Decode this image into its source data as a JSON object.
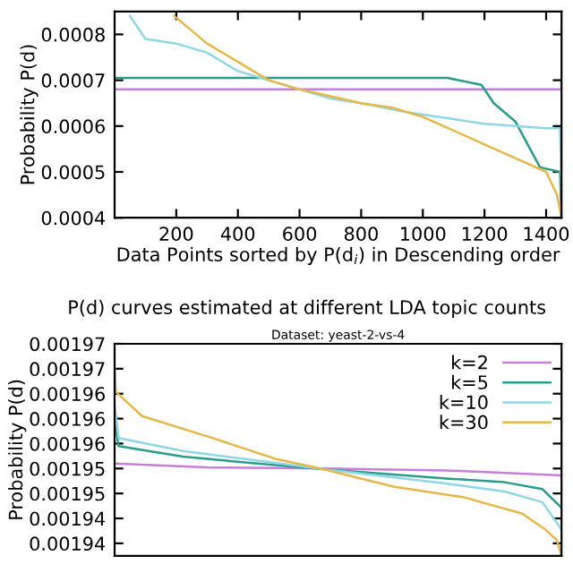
{
  "chart_data": [
    {
      "type": "line",
      "xlabel": "Data Points sorted by P(d$_{i}$) in Descending order",
      "ylabel": "Probability P(d)",
      "xlim": [
        0,
        1450
      ],
      "xticks": [
        200,
        400,
        600,
        800,
        1000,
        1200,
        1400
      ],
      "ylim": [
        0.0004,
        0.00085
      ],
      "yticks": [
        {
          "value": 0.0004,
          "label": "0.0004"
        },
        {
          "value": 0.0005,
          "label": "0.0005"
        },
        {
          "value": 0.0006,
          "label": "0.0006"
        },
        {
          "value": 0.0007,
          "label": "0.0007"
        },
        {
          "value": 0.0008,
          "label": "0.0008"
        }
      ],
      "grid": false,
      "legend": false,
      "series": [
        {
          "color": "#c77fd9",
          "x": [
            0,
            1450
          ],
          "values": [
            0.00068,
            0.00068
          ]
        },
        {
          "color": "#2a9d8a",
          "x": [
            0,
            1080,
            1190,
            1230,
            1300,
            1380,
            1445,
            1450
          ],
          "values": [
            0.000705,
            0.000705,
            0.00069,
            0.00065,
            0.00061,
            0.00051,
            0.0005,
            0.0004
          ]
        },
        {
          "color": "#8fd6e6",
          "x": [
            50,
            100,
            200,
            300,
            400,
            500,
            600,
            700,
            800,
            950,
            1050,
            1150,
            1200,
            1400,
            1445,
            1450
          ],
          "values": [
            0.00084,
            0.00079,
            0.00078,
            0.00076,
            0.00072,
            0.0007,
            0.00068,
            0.00066,
            0.00065,
            0.00063,
            0.00062,
            0.00061,
            0.000605,
            0.000595,
            0.000595,
            0.00045
          ]
        },
        {
          "color": "#e6b84a",
          "x": [
            193,
            300,
            400,
            500,
            600,
            700,
            800,
            900,
            1000,
            1100,
            1200,
            1300,
            1400,
            1435,
            1450
          ],
          "values": [
            0.00084,
            0.00078,
            0.00074,
            0.0007,
            0.00068,
            0.000665,
            0.00065,
            0.00064,
            0.00062,
            0.00059,
            0.00056,
            0.00053,
            0.0005,
            0.00045,
            0.0004
          ]
        }
      ]
    },
    {
      "type": "line",
      "title": "P(d) curves estimated at different LDA topic counts",
      "subtitle": "Dataset: yeast-2-vs-4",
      "ylabel": "Probability P(d)",
      "xlim": [
        0,
        1450
      ],
      "ylim": [
        0.001938,
        0.001972
      ],
      "tick_labels": "y",
      "grid": false,
      "legend": "top right",
      "yticks": [
        {
          "value": 0.001972,
          "label": "0.00197"
        },
        {
          "value": 0.001968,
          "label": "0.00197"
        },
        {
          "value": 0.001964,
          "label": "0.00196"
        },
        {
          "value": 0.00196,
          "label": "0.00196"
        },
        {
          "value": 0.001956,
          "label": "0.00196"
        },
        {
          "value": 0.001952,
          "label": "0.00195"
        },
        {
          "value": 0.001948,
          "label": "0.00195"
        },
        {
          "value": 0.001944,
          "label": "0.00194"
        },
        {
          "value": 0.00194,
          "label": "0.00194"
        }
      ],
      "series": [
        {
          "name": "k=2",
          "color": "#c77fd9",
          "x": [
            0,
            300,
            677,
            1075,
            1450
          ],
          "values": [
            0.0019528,
            0.0019522,
            0.001952,
            0.0019517,
            0.0019509
          ]
        },
        {
          "name": "k=5",
          "color": "#2a9d8a",
          "x": [
            0,
            13,
            222,
            506,
            677,
            1075,
            1265,
            1388,
            1450
          ],
          "values": [
            0.0019595,
            0.0019556,
            0.0019539,
            0.0019526,
            0.0019519,
            0.0019504,
            0.0019498,
            0.0019487,
            0.0019457
          ]
        },
        {
          "name": "k=10",
          "color": "#8fd6e6",
          "x": [
            0,
            13,
            222,
            506,
            677,
            1075,
            1265,
            1388,
            1450
          ],
          "values": [
            0.0019621,
            0.0019569,
            0.0019548,
            0.001953,
            0.0019519,
            0.0019496,
            0.0019483,
            0.0019466,
            0.0019422
          ]
        },
        {
          "name": "k=30",
          "color": "#e6b84a",
          "x": [
            0,
            4,
            89,
            317,
            525,
            677,
            904,
            1132,
            1321,
            1398,
            1435,
            1450
          ],
          "values": [
            0.0019686,
            0.0019643,
            0.0019604,
            0.0019569,
            0.0019535,
            0.0019519,
            0.0019491,
            0.0019474,
            0.0019448,
            0.0019422,
            0.0019405,
            0.001938
          ]
        }
      ]
    }
  ]
}
